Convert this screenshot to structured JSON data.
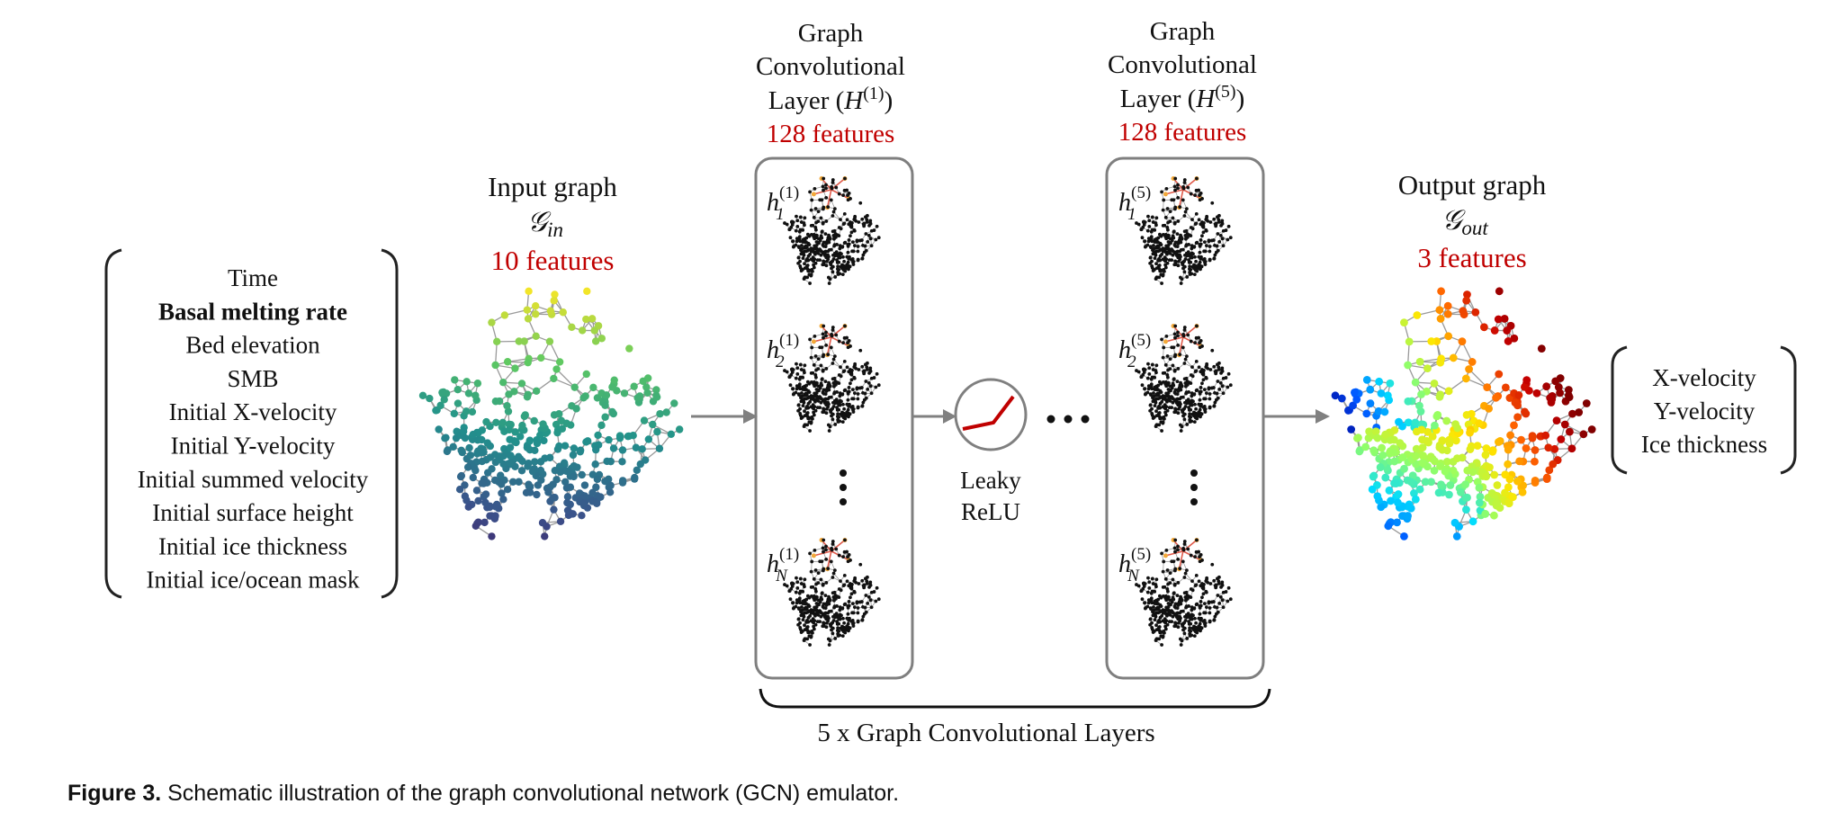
{
  "input_features": {
    "items": [
      {
        "label": "Time",
        "bold": false
      },
      {
        "label": "Basal melting rate",
        "bold": true
      },
      {
        "label": "Bed elevation",
        "bold": false
      },
      {
        "label": "SMB",
        "bold": false
      },
      {
        "label": "Initial X-velocity",
        "bold": false
      },
      {
        "label": "Initial Y-velocity",
        "bold": false
      },
      {
        "label": "Initial summed velocity",
        "bold": false
      },
      {
        "label": "Initial surface height",
        "bold": false
      },
      {
        "label": "Initial ice thickness",
        "bold": false
      },
      {
        "label": "Initial ice/ocean mask",
        "bold": false
      }
    ]
  },
  "input_graph": {
    "title": "Input graph",
    "symbol": "𝒢",
    "symbol_sub": "in",
    "features": "10 features"
  },
  "layer1": {
    "title_lines": [
      "Graph",
      "Convolutional",
      "Layer ("
    ],
    "h_letter": "H",
    "superscript": "(1)",
    "close": ")",
    "features": "128 features",
    "nodes": [
      {
        "letter": "h",
        "sub": "1",
        "sup": "(1)"
      },
      {
        "letter": "h",
        "sub": "2",
        "sup": "(1)"
      },
      {
        "letter": "h",
        "sub": "N",
        "sup": "(1)"
      }
    ]
  },
  "layer5": {
    "title_lines": [
      "Graph",
      "Convolutional",
      "Layer ("
    ],
    "h_letter": "H",
    "superscript": "(5)",
    "close": ")",
    "features": "128 features",
    "nodes": [
      {
        "letter": "h",
        "sub": "1",
        "sup": "(5)"
      },
      {
        "letter": "h",
        "sub": "2",
        "sup": "(5)"
      },
      {
        "letter": "h",
        "sub": "N",
        "sup": "(5)"
      }
    ]
  },
  "activation": {
    "line1": "Leaky",
    "line2": "ReLU"
  },
  "ellipsis": "• • •",
  "layers_brace_label": "5 x Graph Convolutional Layers",
  "output_graph": {
    "title": "Output graph",
    "symbol": "𝒢",
    "symbol_sub": "out",
    "features": "3 features"
  },
  "output_features": {
    "items": [
      "X-velocity",
      "Y-velocity",
      "Ice thickness"
    ]
  },
  "caption": {
    "label": "Figure 3.",
    "text": " Schematic illustration of the graph convolutional network (GCN) emulator."
  },
  "colors": {
    "feature_count": "#c00000",
    "box_stroke": "#7f7f7f",
    "arrow": "#808080",
    "relu_line": "#c00000",
    "edge": "#9a9a9a",
    "highlight_node": "#f2a93b",
    "highlight_edge": "#e05a4a"
  }
}
